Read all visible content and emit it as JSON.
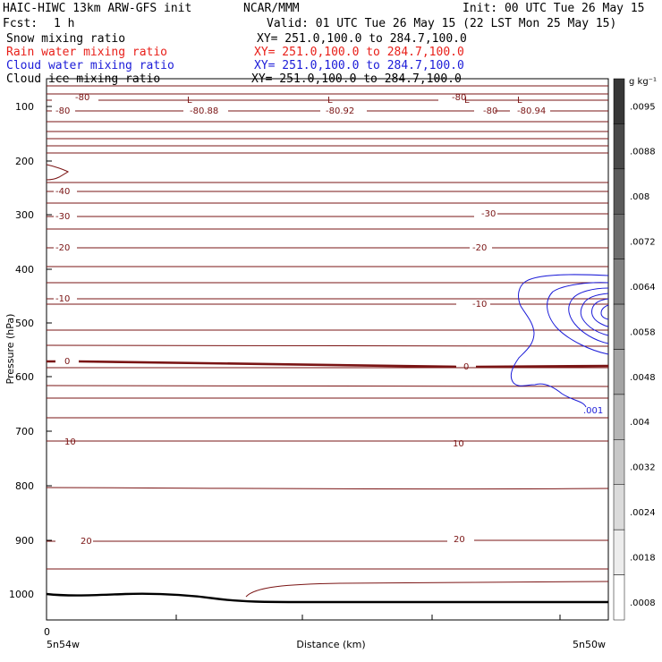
{
  "header": {
    "title_left": "HAIC-HIWC 13km ARW-GFS init",
    "org": "NCAR/MMM",
    "init": "Init: 00 UTC Tue 26 May 15",
    "fcst_label": "Fcst:",
    "fcst_value": "1 h",
    "valid": "Valid: 01 UTC Tue 26 May 15 (22 LST Mon 25 May 15)"
  },
  "fields": [
    {
      "name": "Snow mixing ratio",
      "xy": "XY= 251.0,100.0 to 284.7,100.0",
      "color": "#000000"
    },
    {
      "name": "Rain water mixing ratio",
      "xy": "XY= 251.0,100.0 to 284.7,100.0",
      "color": "#e8201a"
    },
    {
      "name": "Cloud water mixing ratio",
      "xy": "XY= 251.0,100.0 to 284.7,100.0",
      "color": "#1c1cd8"
    },
    {
      "name": "Cloud ice mixing ratio",
      "xy": "XY= 251.0,100.0 to 284.7,100.0",
      "color": "#000000"
    }
  ],
  "axes": {
    "ylabel": "Pressure (hPa)",
    "xlabel": "Distance (km)",
    "x_left_label": "5n54w",
    "x_right_label": "5n50w",
    "x_zero": "0",
    "y_ticks": [
      "100",
      "200",
      "300",
      "400",
      "500",
      "600",
      "700",
      "800",
      "900",
      "1000"
    ]
  },
  "colorbar": {
    "unit": "g kg⁻¹",
    "labels": [
      ".0095",
      ".0088",
      ".008",
      ".0072",
      ".0064",
      ".0058",
      ".0048",
      ".004",
      ".0032",
      ".0024",
      ".0018",
      ".0008"
    ]
  },
  "chart_data": {
    "type": "contour",
    "xlabel": "Distance (km)",
    "ylabel": "Pressure (hPa)",
    "ylim": [
      1050,
      50
    ],
    "y_scale": "linear (pressure, top = low pressure)",
    "temperature_contours_C": {
      "color": "#7a1414",
      "labels": [
        {
          "text": "-80",
          "p": 110,
          "pos": "left"
        },
        {
          "text": "-80",
          "p": 120,
          "pos": "left"
        },
        {
          "text": "-80",
          "p": 110,
          "pos": "right"
        },
        {
          "text": "-80",
          "p": 120,
          "pos": "right"
        },
        {
          "text": "-80.88",
          "p": 120,
          "pos": "left"
        },
        {
          "text": "-80.92",
          "p": 120,
          "pos": "center"
        },
        {
          "text": "-80.94",
          "p": 120,
          "pos": "right"
        },
        {
          "text": "-40",
          "p": 242,
          "pos": "left"
        },
        {
          "text": "-30",
          "p": 302,
          "pos": "left"
        },
        {
          "text": "-30",
          "p": 300,
          "pos": "right"
        },
        {
          "text": "-20",
          "p": 372,
          "pos": "left"
        },
        {
          "text": "-20",
          "p": 370,
          "pos": "right"
        },
        {
          "text": "-10",
          "p": 482,
          "pos": "left"
        },
        {
          "text": "-10",
          "p": 489,
          "pos": "right"
        },
        {
          "text": "0",
          "p": 574,
          "pos": "left"
        },
        {
          "text": "0",
          "p": 581,
          "pos": "right"
        },
        {
          "text": "10",
          "p": 718,
          "pos": "left"
        },
        {
          "text": "10",
          "p": 720,
          "pos": "center"
        },
        {
          "text": "20",
          "p": 904,
          "pos": "left"
        },
        {
          "text": "20",
          "p": 900,
          "pos": "center"
        }
      ],
      "low_markers": [
        "L",
        "L",
        "L",
        "L"
      ]
    },
    "cloud_water_contours": {
      "color": "#1c1cd8",
      "labels": [
        {
          "text": ".001",
          "p": 655
        }
      ]
    },
    "terrain_hPa": [
      1005,
      1008,
      1007,
      1005,
      1007,
      1012,
      1015,
      1015,
      1015,
      1015
    ]
  }
}
